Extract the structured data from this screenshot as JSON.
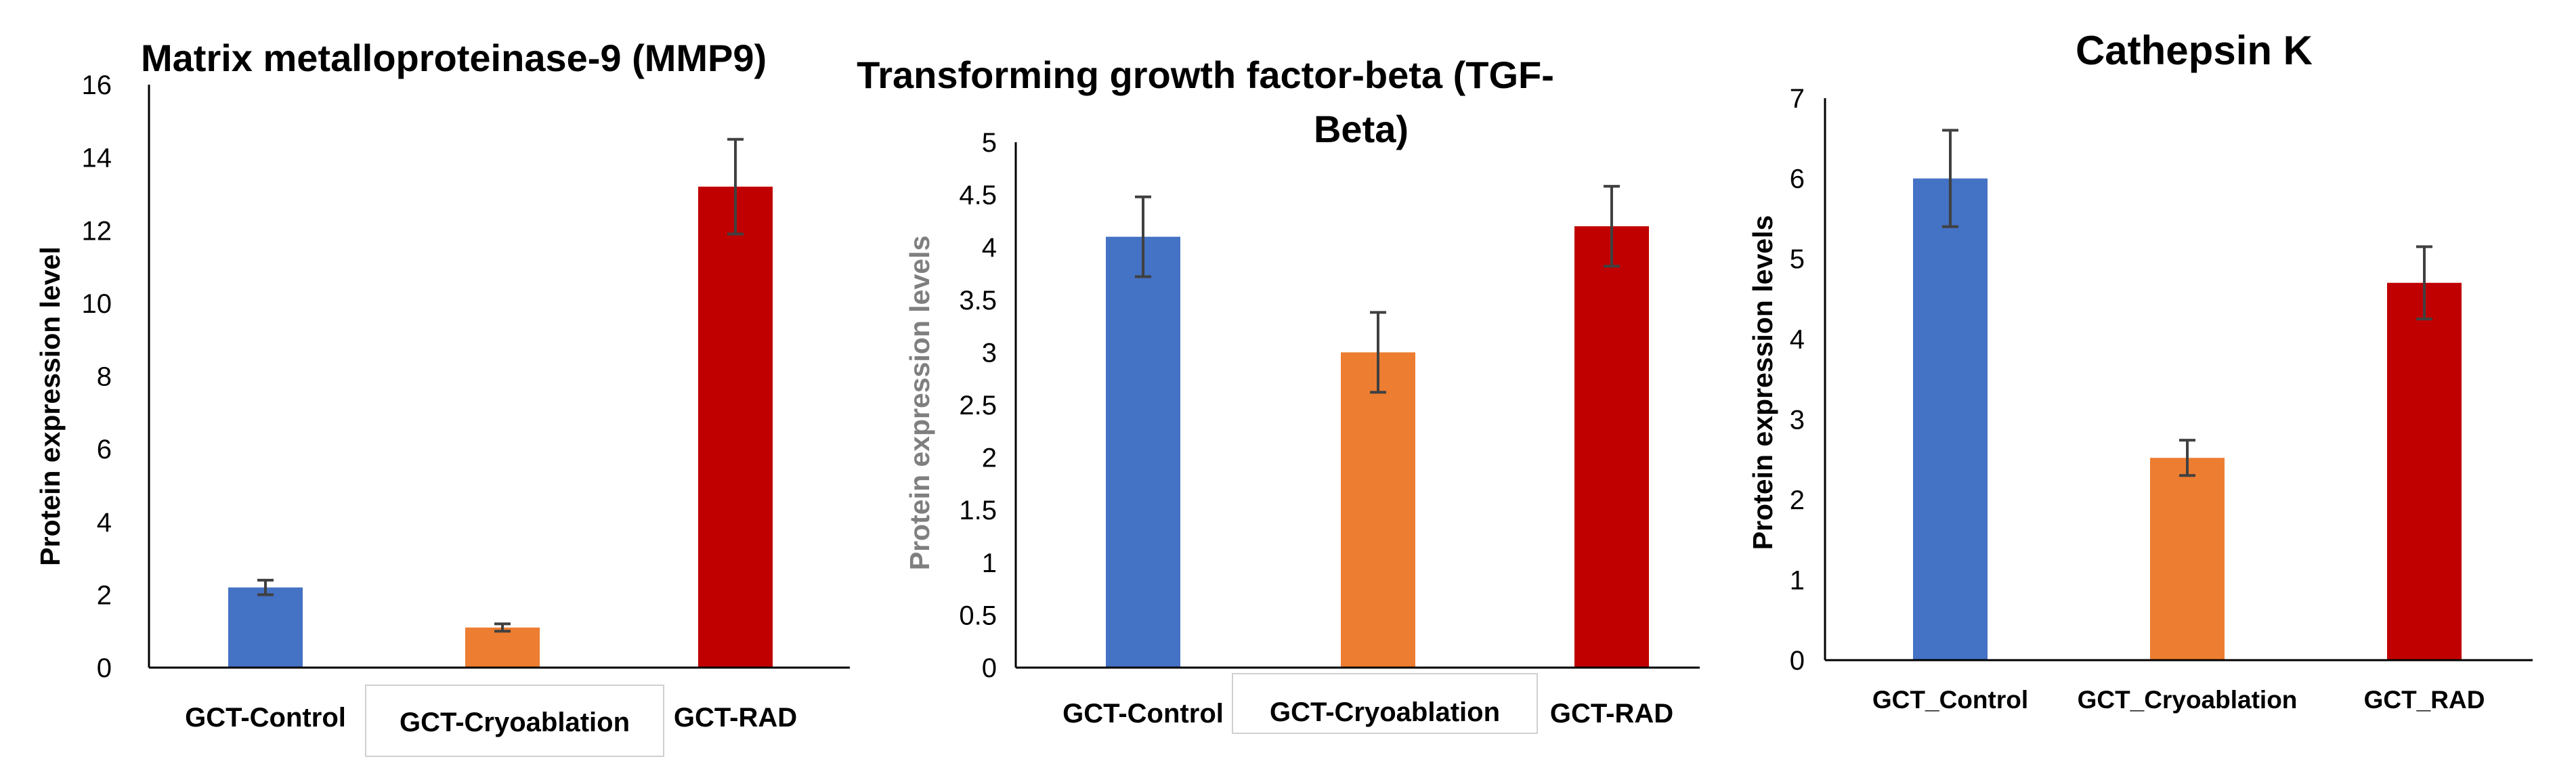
{
  "colors": {
    "axis": "#000000",
    "error_bar": "#404040",
    "label_box_border": "#d0d0d0",
    "gray_label": "#7f7f7f"
  },
  "chart_data": [
    {
      "type": "bar",
      "title": "Matrix metalloproteinase-9 (MMP9)",
      "ylabel": "Protein expression level",
      "xlabel": "",
      "categories": [
        "GCT-Control",
        "GCT-Cryoablation",
        "GCT-RAD"
      ],
      "values": [
        2.2,
        1.1,
        13.2
      ],
      "errors": [
        0.2,
        0.1,
        1.3
      ],
      "bar_colors": [
        "#4472C4",
        "#ED7D31",
        "#C00000"
      ],
      "ylim": [
        0,
        16
      ],
      "yticks": [
        0,
        2,
        4,
        6,
        8,
        10,
        12,
        14,
        16
      ],
      "ytick_labels": [
        "0",
        "2",
        "4",
        "6",
        "8",
        "10",
        "12",
        "14",
        "16"
      ],
      "grid": false
    },
    {
      "type": "bar",
      "title": "Transforming growth factor-beta (TGF-Beta)",
      "title_lines": [
        "Transforming growth factor-beta (TGF-",
        "Beta)"
      ],
      "ylabel": "Protein expression levels",
      "xlabel": "",
      "categories": [
        "GCT-Control",
        "GCT-Cryoablation",
        "GCT-RAD"
      ],
      "values": [
        4.1,
        3.0,
        4.2
      ],
      "errors": [
        0.38,
        0.38,
        0.38
      ],
      "bar_colors": [
        "#4472C4",
        "#ED7D31",
        "#C00000"
      ],
      "ylim": [
        0,
        5
      ],
      "yticks": [
        0,
        0.5,
        1,
        1.5,
        2,
        2.5,
        3,
        3.5,
        4,
        4.5,
        5
      ],
      "ytick_labels": [
        "0",
        "0.5",
        "1",
        "1.5",
        "2",
        "2.5",
        "3",
        "3.5",
        "4",
        "4.5",
        "5"
      ],
      "grid": false
    },
    {
      "type": "bar",
      "title": "Cathepsin K",
      "ylabel": "Protein expression levels",
      "xlabel": "",
      "categories": [
        "GCT_Control",
        "GCT_Cryoablation",
        "GCT_RAD"
      ],
      "values": [
        6.0,
        2.52,
        4.7
      ],
      "errors": [
        0.6,
        0.22,
        0.45
      ],
      "bar_colors": [
        "#4472C4",
        "#ED7D31",
        "#C00000"
      ],
      "ylim": [
        0,
        7
      ],
      "yticks": [
        0,
        1,
        2,
        3,
        4,
        5,
        6,
        7
      ],
      "ytick_labels": [
        "0",
        "1",
        "2",
        "3",
        "4",
        "5",
        "6",
        "7"
      ],
      "grid": false
    }
  ]
}
